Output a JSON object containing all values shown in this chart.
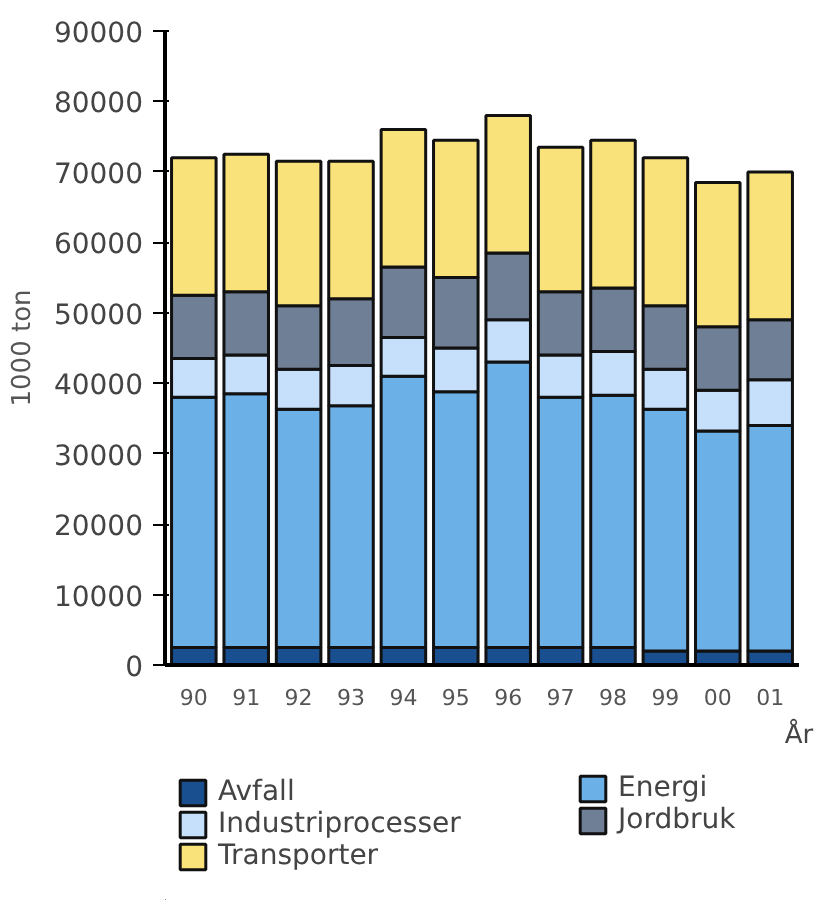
{
  "chart_data": {
    "type": "bar",
    "stacked": true,
    "ylabel": "1000 ton",
    "xlabel": "År",
    "categories": [
      "90",
      "91",
      "92",
      "93",
      "94",
      "95",
      "96",
      "97",
      "98",
      "99",
      "00",
      "01"
    ],
    "series": [
      {
        "name": "Avfall",
        "color": "#1a4f8f",
        "values": [
          2500,
          2500,
          2500,
          2500,
          2500,
          2500,
          2500,
          2500,
          2500,
          2000,
          2000,
          2000
        ]
      },
      {
        "name": "Energi",
        "color": "#6cb0e8",
        "values": [
          35500,
          36000,
          33800,
          34300,
          38500,
          36300,
          40500,
          35500,
          35800,
          34300,
          31200,
          32000
        ]
      },
      {
        "name": "Industriprocesser",
        "color": "#c6e0fb",
        "values": [
          5500,
          5500,
          5700,
          5700,
          5500,
          6200,
          6000,
          6000,
          6200,
          5700,
          5800,
          6500
        ]
      },
      {
        "name": "Jordbruk",
        "color": "#6f7f95",
        "values": [
          9000,
          9000,
          9000,
          9500,
          10000,
          10000,
          9500,
          9000,
          9000,
          9000,
          9000,
          8500
        ]
      },
      {
        "name": "Transporter",
        "color": "#fae27a",
        "values": [
          19500,
          19500,
          20500,
          19500,
          19500,
          19500,
          19500,
          20500,
          21000,
          21000,
          20500,
          21000
        ]
      }
    ],
    "ylim": [
      0,
      90000
    ],
    "yticks": [
      0,
      10000,
      20000,
      30000,
      40000,
      50000,
      60000,
      70000,
      80000,
      90000
    ],
    "grid": false,
    "legend": "bottom"
  }
}
